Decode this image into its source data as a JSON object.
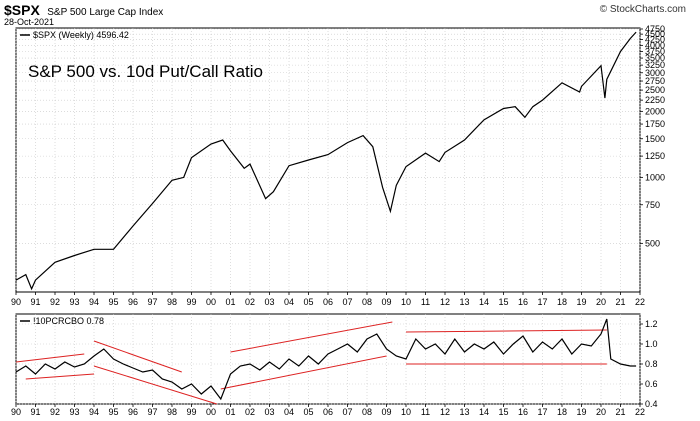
{
  "header": {
    "symbol": "$SPX",
    "name": "S&P 500 Large Cap Index",
    "date": "28-Oct-2021",
    "copyright": "© StockCharts.com"
  },
  "annotation": "S&P 500 vs. 10d Put/Call Ratio",
  "chart_data": [
    {
      "type": "line",
      "title": "",
      "legend": "$SPX (Weekly) 4596.42",
      "color": "#000000",
      "yscale": "log",
      "ylim": [
        300,
        4800
      ],
      "y_ticks": [
        "4750",
        "4500",
        "4250",
        "4000",
        "3750",
        "3500",
        "3250",
        "3000",
        "2750",
        "2500",
        "2250",
        "2000",
        "1750",
        "1500",
        "1250",
        "1000",
        "750",
        "500"
      ],
      "x_ticks": [
        "90",
        "91",
        "92",
        "93",
        "94",
        "95",
        "96",
        "97",
        "98",
        "99",
        "00",
        "01",
        "02",
        "03",
        "04",
        "05",
        "06",
        "07",
        "08",
        "09",
        "10",
        "11",
        "12",
        "13",
        "14",
        "15",
        "16",
        "17",
        "18",
        "19",
        "20",
        "21",
        "22"
      ],
      "x": [
        1990.0,
        1990.5,
        1990.8,
        1991.0,
        1992.0,
        1993.0,
        1994.0,
        1995.0,
        1996.0,
        1997.0,
        1998.0,
        1998.6,
        1999.0,
        2000.0,
        2000.6,
        2001.0,
        2001.7,
        2002.0,
        2002.8,
        2003.2,
        2004.0,
        2005.0,
        2006.0,
        2007.0,
        2007.8,
        2008.3,
        2008.8,
        2009.2,
        2009.5,
        2010.0,
        2011.0,
        2011.7,
        2012.0,
        2013.0,
        2014.0,
        2015.0,
        2015.6,
        2016.1,
        2016.5,
        2017.0,
        2018.0,
        2018.9,
        2019.0,
        2020.0,
        2020.2,
        2020.3,
        2021.0,
        2021.5,
        2021.8
      ],
      "y": [
        340,
        360,
        310,
        340,
        410,
        440,
        470,
        470,
        600,
        760,
        970,
        1000,
        1230,
        1420,
        1480,
        1320,
        1100,
        1150,
        800,
        860,
        1130,
        1200,
        1270,
        1440,
        1550,
        1380,
        900,
        700,
        920,
        1120,
        1290,
        1180,
        1300,
        1480,
        1830,
        2060,
        2100,
        1880,
        2100,
        2250,
        2700,
        2450,
        2600,
        3230,
        2300,
        2800,
        3750,
        4300,
        4596.42
      ],
      "trendlines": []
    },
    {
      "type": "line",
      "title": "",
      "legend": "!10PCRCBO 0.78",
      "color": "#000000",
      "ylim": [
        0.4,
        1.3
      ],
      "y_ticks": [
        "1.2",
        "1.0",
        "0.8",
        "0.6",
        "0.4"
      ],
      "x_ticks": [
        "90",
        "91",
        "92",
        "93",
        "94",
        "95",
        "96",
        "97",
        "98",
        "99",
        "00",
        "01",
        "02",
        "03",
        "04",
        "05",
        "06",
        "07",
        "08",
        "09",
        "10",
        "11",
        "12",
        "13",
        "14",
        "15",
        "16",
        "17",
        "18",
        "19",
        "20",
        "21",
        "22"
      ],
      "x": [
        1990.0,
        1990.5,
        1991.0,
        1991.5,
        1992.0,
        1992.5,
        1993.0,
        1993.5,
        1994.0,
        1994.5,
        1995.0,
        1995.5,
        1996.0,
        1996.5,
        1997.0,
        1997.5,
        1998.0,
        1998.5,
        1999.0,
        1999.5,
        2000.0,
        2000.5,
        2001.0,
        2001.5,
        2002.0,
        2002.5,
        2003.0,
        2003.5,
        2004.0,
        2004.5,
        2005.0,
        2005.5,
        2006.0,
        2006.5,
        2007.0,
        2007.5,
        2008.0,
        2008.5,
        2009.0,
        2009.5,
        2010.0,
        2010.5,
        2011.0,
        2011.5,
        2012.0,
        2012.5,
        2013.0,
        2013.5,
        2014.0,
        2014.5,
        2015.0,
        2015.5,
        2016.0,
        2016.5,
        2017.0,
        2017.5,
        2018.0,
        2018.5,
        2019.0,
        2019.5,
        2020.0,
        2020.3,
        2020.5,
        2021.0,
        2021.5,
        2021.8
      ],
      "y": [
        0.72,
        0.78,
        0.7,
        0.8,
        0.75,
        0.82,
        0.77,
        0.8,
        0.88,
        0.95,
        0.85,
        0.8,
        0.76,
        0.72,
        0.74,
        0.65,
        0.62,
        0.55,
        0.6,
        0.5,
        0.58,
        0.45,
        0.7,
        0.78,
        0.8,
        0.74,
        0.82,
        0.75,
        0.85,
        0.78,
        0.88,
        0.8,
        0.9,
        0.95,
        1.0,
        0.92,
        1.05,
        1.1,
        0.95,
        0.88,
        0.85,
        1.05,
        0.95,
        1.0,
        0.9,
        1.05,
        0.92,
        1.0,
        0.95,
        1.02,
        0.9,
        1.0,
        1.08,
        0.92,
        1.02,
        0.95,
        1.05,
        0.9,
        1.0,
        0.98,
        1.1,
        1.25,
        0.85,
        0.8,
        0.78,
        0.78
      ],
      "trendlines": [
        {
          "x1": 1990.0,
          "y1": 0.82,
          "x2": 1993.5,
          "y2": 0.9
        },
        {
          "x1": 1990.5,
          "y1": 0.65,
          "x2": 1994.0,
          "y2": 0.7
        },
        {
          "x1": 1994.0,
          "y1": 1.03,
          "x2": 1998.5,
          "y2": 0.72
        },
        {
          "x1": 1994.0,
          "y1": 0.78,
          "x2": 2000.3,
          "y2": 0.4
        },
        {
          "x1": 2001.0,
          "y1": 0.92,
          "x2": 2009.3,
          "y2": 1.22
        },
        {
          "x1": 2000.5,
          "y1": 0.55,
          "x2": 2009.0,
          "y2": 0.88
        },
        {
          "x1": 2010.0,
          "y1": 1.12,
          "x2": 2020.3,
          "y2": 1.14
        },
        {
          "x1": 2010.0,
          "y1": 0.8,
          "x2": 2020.3,
          "y2": 0.8
        }
      ]
    }
  ]
}
